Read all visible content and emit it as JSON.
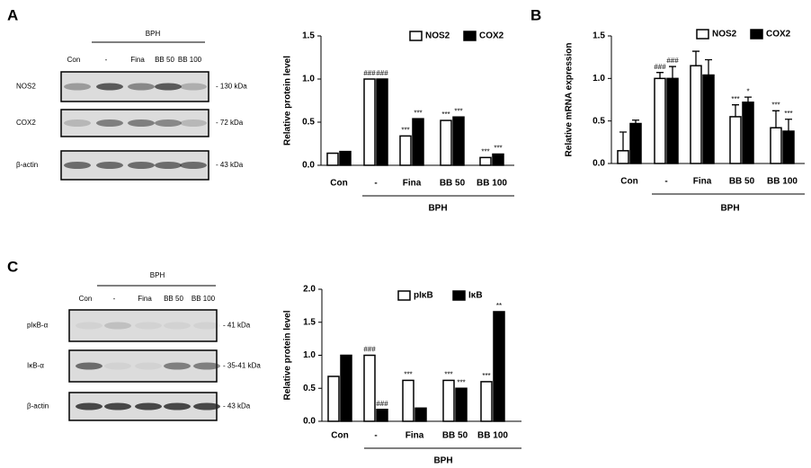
{
  "chart_data": [
    {
      "type": "bar",
      "panel_label": "A",
      "ylabel": "Relative protein level",
      "group_label": "BPH",
      "categories": [
        "Con",
        "-",
        "Fina",
        "BB 50",
        "BB 100"
      ],
      "series": [
        {
          "name": "NOS2",
          "color": "#ffffff",
          "values": [
            0.14,
            1.0,
            0.34,
            0.52,
            0.09
          ],
          "annotations": [
            null,
            "###",
            "***",
            "***",
            "***"
          ]
        },
        {
          "name": "COX2",
          "color": "#000000",
          "values": [
            0.16,
            1.0,
            0.54,
            0.56,
            0.13
          ],
          "annotations": [
            null,
            "###",
            "***",
            "***",
            "***"
          ]
        }
      ],
      "ylim": [
        0,
        1.5
      ],
      "yticks": [
        {
          "value": 0,
          "label": "0.0"
        },
        0.5,
        {
          "value": 1,
          "label": "1.0"
        },
        1.5
      ],
      "legend": "upper right"
    },
    {
      "type": "bar",
      "panel_label": "B",
      "ylabel": "Relative mRNA expression",
      "group_label": "BPH",
      "categories": [
        "Con",
        "-",
        "Fina",
        "BB 50",
        "BB 100"
      ],
      "series": [
        {
          "name": "NOS2",
          "color": "#ffffff",
          "values": [
            0.15,
            1.0,
            1.15,
            0.55,
            0.42
          ],
          "errors": [
            0.22,
            0.07,
            0.17,
            0.14,
            0.2
          ],
          "annotations": [
            null,
            "###",
            null,
            "***",
            "***"
          ]
        },
        {
          "name": "COX2",
          "color": "#000000",
          "values": [
            0.47,
            1.0,
            1.04,
            0.72,
            0.38
          ],
          "errors": [
            0.04,
            0.14,
            0.18,
            0.06,
            0.14
          ],
          "annotations": [
            null,
            "###",
            null,
            "*",
            "***"
          ]
        }
      ],
      "ylim": [
        0,
        1.5
      ],
      "yticks": [
        {
          "value": 0,
          "label": "0.0"
        },
        0.5,
        {
          "value": 1,
          "label": "1.0"
        },
        1.5
      ],
      "legend": "upper right"
    },
    {
      "type": "bar",
      "panel_label": "C",
      "ylabel": "Relative protein level",
      "group_label": "BPH",
      "categories": [
        "Con",
        "-",
        "Fina",
        "BB 50",
        "BB 100"
      ],
      "series": [
        {
          "name": "pIκB",
          "color": "#ffffff",
          "values": [
            0.68,
            1.0,
            0.62,
            0.62,
            0.6
          ],
          "annotations": [
            null,
            "###",
            "***",
            "***",
            "***"
          ]
        },
        {
          "name": "IκB",
          "color": "#000000",
          "values": [
            1.0,
            0.18,
            0.2,
            0.5,
            1.66
          ],
          "annotations": [
            null,
            "###",
            null,
            "***",
            "**"
          ]
        }
      ],
      "ylim": [
        0,
        2
      ],
      "yticks": [
        {
          "value": 0,
          "label": "0.0"
        },
        0.5,
        {
          "value": 1,
          "label": "1.0"
        },
        1.5,
        {
          "value": 2,
          "label": "2.0"
        }
      ],
      "legend": "upper right"
    }
  ],
  "blots": [
    {
      "group_label": "BPH",
      "lanes": [
        "Con",
        "-",
        "Fina",
        "BB 50",
        "BB 100"
      ],
      "rows": [
        {
          "label": "NOS2",
          "size": "- 130 kDa"
        },
        {
          "label": "COX2",
          "size": "- 72 kDa"
        },
        {
          "label": "β-actin",
          "size": "- 43 kDa"
        }
      ]
    },
    {
      "group_label": "BPH",
      "lanes": [
        "Con",
        "-",
        "Fina",
        "BB 50",
        "BB 100"
      ],
      "rows": [
        {
          "label": "pIκB-α",
          "size": "- 41 kDa"
        },
        {
          "label": "IκB-α",
          "size": "- 35-41 kDa"
        },
        {
          "label": "β-actin",
          "size": "- 43 kDa"
        }
      ]
    }
  ]
}
